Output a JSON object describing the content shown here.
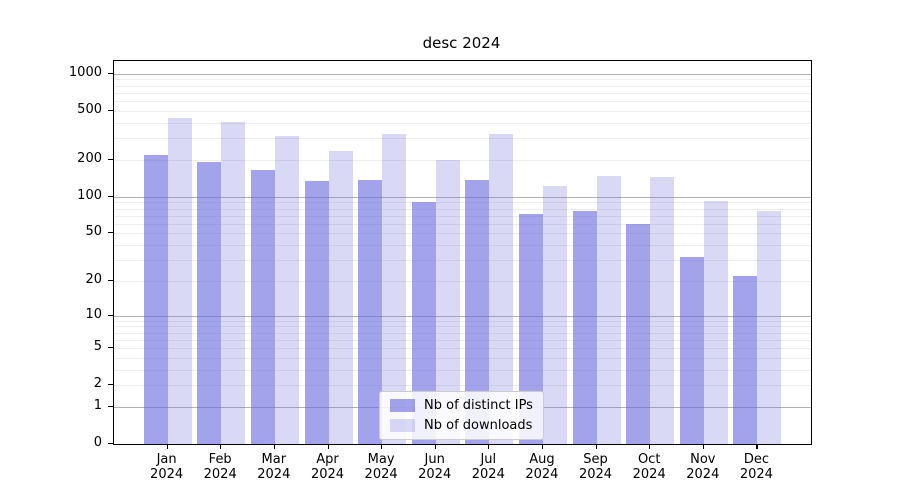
{
  "chart_data": {
    "type": "bar",
    "title": "desc 2024",
    "categories": [
      "Jan 2024",
      "Feb 2024",
      "Mar 2024",
      "Apr 2024",
      "May 2024",
      "Jun 2024",
      "Jul 2024",
      "Aug 2024",
      "Sep 2024",
      "Oct 2024",
      "Nov 2024",
      "Dec 2024"
    ],
    "series": [
      {
        "name": "Nb of distinct IPs",
        "color": "rgba(102,102,221,0.60)",
        "values": [
          220,
          193,
          166,
          135,
          138,
          91,
          138,
          72,
          77,
          60,
          32,
          22
        ]
      },
      {
        "name": "Nb of downloads",
        "color": "rgba(102,102,221,0.25)",
        "values": [
          440,
          410,
          310,
          237,
          324,
          200,
          324,
          123,
          148,
          144,
          92,
          77
        ]
      }
    ],
    "yscale": "log1p",
    "ylim": [
      0,
      1270
    ],
    "yticks": [
      0,
      1,
      2,
      5,
      10,
      20,
      50,
      100,
      200,
      500,
      1000
    ],
    "major_grid_values": [
      1,
      10,
      100,
      1000
    ],
    "grid": "both",
    "legend_position": "lower center",
    "xlabel": "",
    "ylabel": ""
  },
  "colors": {
    "axis": "#000000",
    "major_grid": "#b3b3b3",
    "minor_grid": "#ededed",
    "legend_border": "#cccccc"
  }
}
